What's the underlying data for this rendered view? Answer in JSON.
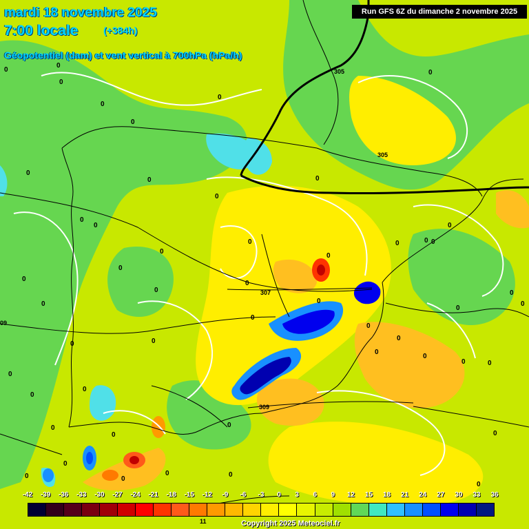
{
  "header": {
    "date_line": "mardi 18 novembre 2025",
    "time_line": "7:00 locale",
    "lead_time": "(+384h)",
    "parameter": "Géopotentiel (dam) et vent vertical à 700hPa (hPa/h)"
  },
  "run_info": "Run GFS 6Z du dimanche 2 novembre 2025",
  "copyright": "Copyright 2025 Meteociel.fr",
  "contour_labels": [
    "305",
    "305",
    "307",
    "309",
    "09",
    "11"
  ],
  "zero_label": "0",
  "scale": {
    "labels": [
      "-42",
      "-39",
      "-36",
      "-33",
      "-30",
      "-27",
      "-24",
      "-21",
      "-18",
      "-15",
      "-12",
      "-9",
      "-6",
      "-3",
      "0",
      "3",
      "6",
      "9",
      "12",
      "15",
      "18",
      "21",
      "24",
      "27",
      "30",
      "33",
      "36"
    ],
    "colors": [
      "#000033",
      "#33001a",
      "#55001a",
      "#7a0010",
      "#a00008",
      "#d00000",
      "#ff0000",
      "#ff3300",
      "#ff5a1a",
      "#ff7a00",
      "#ff9a00",
      "#ffb800",
      "#ffd400",
      "#ffee00",
      "#ffff00",
      "#e8f500",
      "#c8ec00",
      "#a0e000",
      "#60d858",
      "#40e8c0",
      "#30c0ff",
      "#1890ff",
      "#0050ff",
      "#0000ee",
      "#0000b0",
      "#001a80"
    ]
  }
}
